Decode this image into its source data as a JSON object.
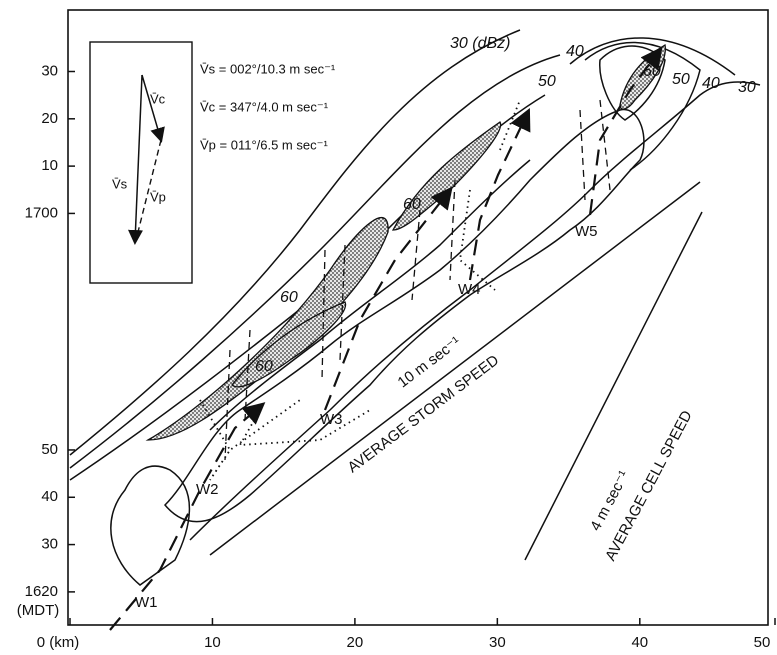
{
  "chart_data": {
    "type": "contour",
    "xlim": [
      0,
      49
    ],
    "xticks": [
      {
        "value": 0,
        "label": "0 (km)"
      },
      10,
      20,
      30,
      40,
      50
    ],
    "ylim": [
      1613,
      1743
    ],
    "yticks": [
      1620,
      {
        "value": 1630,
        "label": "30"
      },
      {
        "value": 1640,
        "label": "40"
      },
      {
        "value": 1650,
        "label": "50"
      },
      1700,
      {
        "value": 1710,
        "label": "10"
      },
      {
        "value": 1720,
        "label": "20"
      },
      {
        "value": 1730,
        "label": "30"
      }
    ],
    "ylabel": "(MDT)",
    "contour_labels": [
      "30 (dBz)",
      "40",
      "50",
      "60",
      "50",
      "40",
      "30",
      "60",
      "60",
      "60"
    ],
    "cells": [
      "W1",
      "W2",
      "W3",
      "W4",
      "W5"
    ],
    "annotations": [
      "10 m sec⁻¹",
      "AVERAGE STORM SPEED",
      "4 m sec⁻¹",
      "AVERAGE CELL SPEED"
    ],
    "inset": {
      "labels": [
        "V̄c",
        "V̄s",
        "V̄p"
      ],
      "legend": [
        "V̄s = 002°/10.3 m sec⁻¹",
        "V̄c = 347°/4.0 m sec⁻¹",
        "V̄p = 011°/6.5 m sec⁻¹"
      ]
    }
  }
}
